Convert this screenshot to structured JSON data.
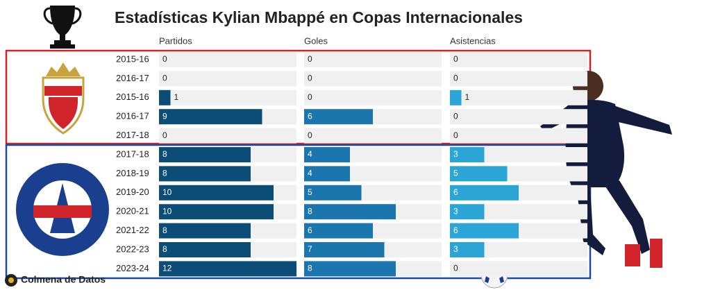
{
  "chart_data": {
    "type": "bar",
    "title": "Estadísticas Kylian Mbappé en Copas Internacionales",
    "categories": [
      "2015-16",
      "2016-17",
      "2015-16",
      "2016-17",
      "2017-18",
      "2017-18",
      "2018-19",
      "2019-20",
      "2020-21",
      "2021-22",
      "2022-23",
      "2023-24"
    ],
    "series": [
      {
        "name": "Partidos",
        "color": "#0c4d78",
        "values": [
          0,
          0,
          1,
          9,
          0,
          8,
          8,
          10,
          10,
          8,
          8,
          12
        ]
      },
      {
        "name": "Goles",
        "color": "#1b76ad",
        "values": [
          0,
          0,
          0,
          6,
          0,
          4,
          4,
          5,
          8,
          6,
          7,
          8
        ]
      },
      {
        "name": "Asistencias",
        "color": "#2ba5d5",
        "values": [
          0,
          0,
          1,
          0,
          0,
          3,
          5,
          6,
          3,
          6,
          3,
          0
        ]
      }
    ],
    "xlim": [
      0,
      12
    ],
    "track_color": "#f0f0f0",
    "credit": "Colmena de Datos"
  }
}
